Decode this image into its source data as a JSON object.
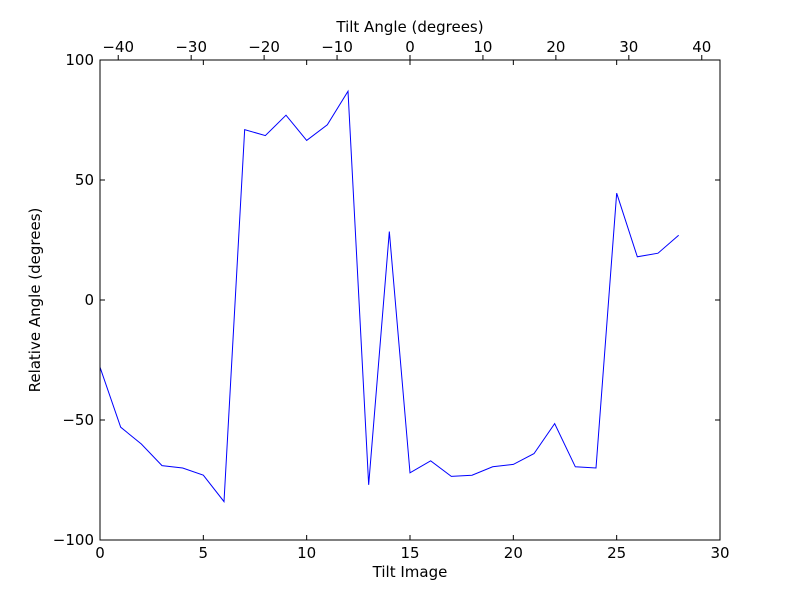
{
  "chart_data": {
    "type": "line",
    "title": "",
    "xlabel": "Tilt Image",
    "ylabel": "Relative Angle (degrees)",
    "x2label": "Tilt Angle (degrees)",
    "xlim": [
      0,
      30
    ],
    "ylim": [
      -100,
      100
    ],
    "x2lim": [
      -42.5,
      42.5
    ],
    "xticks": [
      0,
      5,
      10,
      15,
      20,
      25,
      30
    ],
    "yticks": [
      -100,
      -50,
      0,
      50,
      100
    ],
    "x2ticks": [
      -40,
      -30,
      -20,
      -10,
      0,
      10,
      20,
      30,
      40
    ],
    "xtick_labels": [
      "0",
      "5",
      "10",
      "15",
      "20",
      "25",
      "30"
    ],
    "ytick_labels": [
      "−100",
      "−50",
      "0",
      "50",
      "100"
    ],
    "x2tick_labels": [
      "−40",
      "−30",
      "−20",
      "−10",
      "0",
      "10",
      "20",
      "30",
      "40"
    ],
    "grid": false,
    "line_color": "#0000ff",
    "series": [
      {
        "x": [
          0,
          1,
          2,
          3,
          4,
          5,
          6,
          7,
          8,
          9,
          10,
          11,
          12,
          13,
          14,
          15,
          16,
          17,
          18,
          19,
          20,
          21,
          22,
          23,
          24,
          25,
          26,
          27,
          28
        ],
        "values": [
          -28,
          -53,
          -60,
          -69,
          -70,
          -73,
          -84,
          71,
          68.5,
          77,
          66.5,
          73,
          87,
          -77,
          28.5,
          -72,
          -67,
          -73.5,
          -73,
          -69.5,
          -68.5,
          -64,
          -51.5,
          -69.5,
          -70,
          44.5,
          18,
          19.5,
          27
        ]
      }
    ]
  }
}
